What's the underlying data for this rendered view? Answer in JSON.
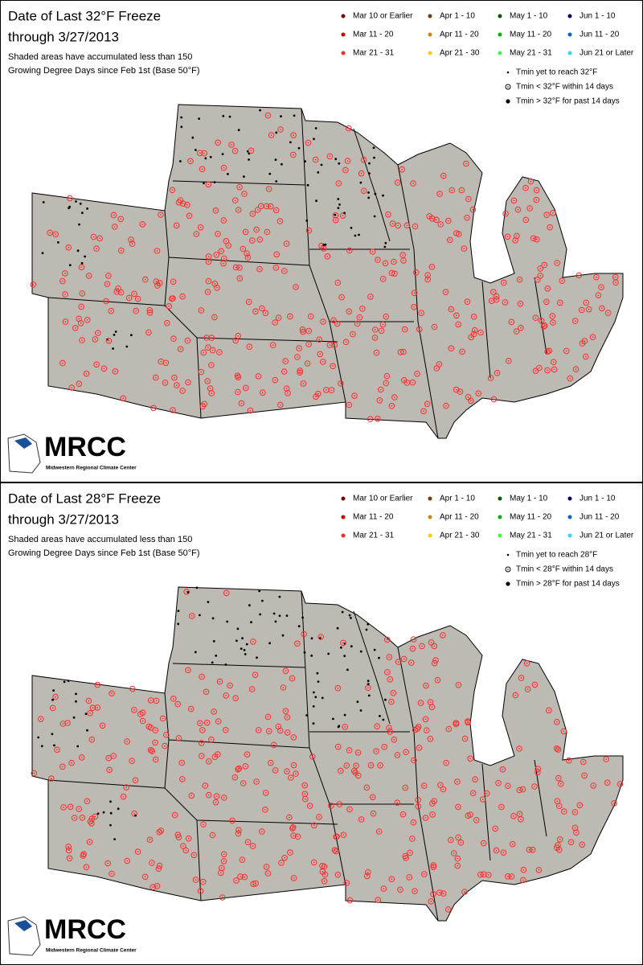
{
  "panels": [
    {
      "title": "Date of Last 32°F Freeze",
      "subtitle": "through 3/27/2013",
      "note_lines": [
        "Shaded areas have accumulated less than 150",
        "Growing Degree Days since Feb 1st (Base 50°F)"
      ],
      "date_legend": [
        {
          "label": "Mar 10 or Earlier",
          "color": "#7a0000"
        },
        {
          "label": "Mar 11 - 20",
          "color": "#c80000"
        },
        {
          "label": "Mar 21 - 31",
          "color": "#ff2a2a"
        },
        {
          "label": "Apr 1 - 10",
          "color": "#7a3c00"
        },
        {
          "label": "Apr 11 - 20",
          "color": "#c88a00"
        },
        {
          "label": "Apr 21 - 30",
          "color": "#ffc800"
        },
        {
          "label": "May 1 - 10",
          "color": "#005a00"
        },
        {
          "label": "May 11 - 20",
          "color": "#00b400"
        },
        {
          "label": "May 21 - 31",
          "color": "#3cff3c"
        },
        {
          "label": "Jun 1 - 10",
          "color": "#00006e"
        },
        {
          "label": "Jun 11 - 20",
          "color": "#0064d2"
        },
        {
          "label": "Jun 21 or Later",
          "color": "#3cd2ff"
        }
      ],
      "symbol_legend": [
        "Tmin yet to reach 32°F",
        "Tmin < 32°F within 14 days",
        "Tmin > 32°F for past 14 days"
      ],
      "logo": {
        "name": "MRCC",
        "subname": "Midwestern Regional Climate Center"
      }
    },
    {
      "title": "Date of Last 28°F Freeze",
      "subtitle": "through 3/27/2013",
      "note_lines": [
        "Shaded areas have accumulated less than 150",
        "Growing Degree Days since Feb 1st (Base 50°F)"
      ],
      "date_legend": [
        {
          "label": "Mar 10 or Earlier",
          "color": "#7a0000"
        },
        {
          "label": "Mar 11 - 20",
          "color": "#c80000"
        },
        {
          "label": "Mar 21 - 31",
          "color": "#ff2a2a"
        },
        {
          "label": "Apr 1 - 10",
          "color": "#7a3c00"
        },
        {
          "label": "Apr 11 - 20",
          "color": "#c88a00"
        },
        {
          "label": "Apr 21 - 30",
          "color": "#ffc800"
        },
        {
          "label": "May 1 - 10",
          "color": "#005a00"
        },
        {
          "label": "May 11 - 20",
          "color": "#00b400"
        },
        {
          "label": "May 21 - 31",
          "color": "#3cff3c"
        },
        {
          "label": "Jun 1 - 10",
          "color": "#00006e"
        },
        {
          "label": "Jun 11 - 20",
          "color": "#0064d2"
        },
        {
          "label": "Jun 21 or Later",
          "color": "#3cd2ff"
        }
      ],
      "symbol_legend": [
        "Tmin yet to reach 28°F",
        "Tmin < 28°F within 14 days",
        "Tmin > 28°F for past 14 days"
      ],
      "logo": {
        "name": "MRCC",
        "subname": "Midwestern Regional Climate Center"
      }
    }
  ]
}
